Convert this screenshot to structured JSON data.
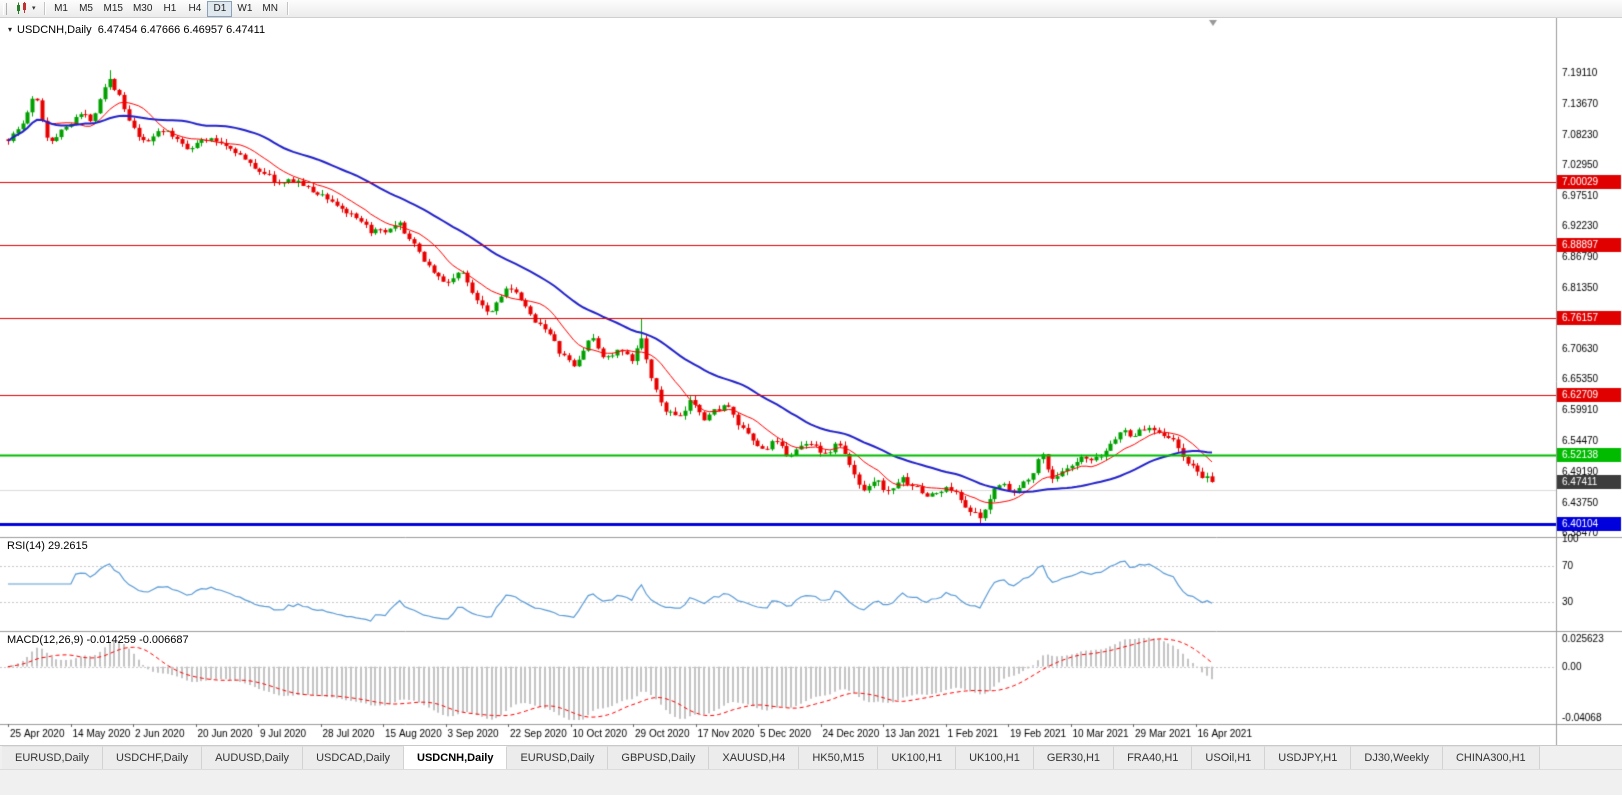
{
  "toolbar": {
    "timeframes": [
      "M1",
      "M5",
      "M15",
      "M30",
      "H1",
      "H4",
      "D1",
      "W1",
      "MN"
    ],
    "active_timeframe": "D1"
  },
  "chart": {
    "title": "USDCNH,Daily  6.47454 6.47666 6.46957 6.47411",
    "symbol": "USDCNH",
    "period": "Daily",
    "ohlc": {
      "open": "6.47454",
      "high": "6.47666",
      "low": "6.46957",
      "close": "6.47411"
    }
  },
  "indicators": {
    "rsi_label": "RSI(14) 29.2615",
    "macd_label": "MACD(12,26,9) -0.014259 -0.006687"
  },
  "price_axis": {
    "regular_labels": [
      "7.19110",
      "7.13670",
      "7.08230",
      "7.02950",
      "6.97510",
      "6.92230",
      "6.86790",
      "6.81350",
      "6.70630",
      "6.65350",
      "6.59910",
      "6.54470",
      "6.49190",
      "6.43750",
      "6.38470"
    ],
    "current_price_label": {
      "text": "6.47411",
      "bg": "#3c3c3c",
      "fg": "#ffffff"
    }
  },
  "colors": {
    "up": "#00a000",
    "down": "#e80000",
    "ma_fast": "#ff0000",
    "ma_slow": "#2121c8",
    "rsi_line": "#5b9bd5",
    "macd_hist": "#c4c4c4",
    "macd_signal": "#ff0000",
    "separator": "#9a9a9a",
    "minor_grid": "#dcdcdc",
    "guide_dotted": "#c8c8c8"
  },
  "chart_data": {
    "type": "candlestick",
    "title": "USDCNH,Daily",
    "num_candles": 250,
    "current_price": 6.47411,
    "minor_line_price": 6.46,
    "y_range": [
      6.365,
      7.215
    ],
    "price_waypoints": [
      [
        8,
        7.075
      ],
      [
        22,
        7.1
      ],
      [
        35,
        7.155
      ],
      [
        48,
        7.07
      ],
      [
        62,
        7.09
      ],
      [
        78,
        7.12
      ],
      [
        92,
        7.11
      ],
      [
        108,
        7.185
      ],
      [
        118,
        7.155
      ],
      [
        130,
        7.1
      ],
      [
        145,
        7.065
      ],
      [
        160,
        7.095
      ],
      [
        172,
        7.08
      ],
      [
        188,
        7.06
      ],
      [
        205,
        7.075
      ],
      [
        220,
        7.07
      ],
      [
        235,
        7.055
      ],
      [
        250,
        7.03
      ],
      [
        265,
        7.015
      ],
      [
        280,
        6.995
      ],
      [
        295,
        7.005
      ],
      [
        310,
        6.985
      ],
      [
        325,
        6.975
      ],
      [
        340,
        6.955
      ],
      [
        355,
        6.935
      ],
      [
        370,
        6.915
      ],
      [
        385,
        6.91
      ],
      [
        400,
        6.925
      ],
      [
        415,
        6.885
      ],
      [
        430,
        6.85
      ],
      [
        445,
        6.82
      ],
      [
        460,
        6.845
      ],
      [
        475,
        6.8
      ],
      [
        490,
        6.77
      ],
      [
        505,
        6.815
      ],
      [
        518,
        6.8
      ],
      [
        530,
        6.765
      ],
      [
        545,
        6.745
      ],
      [
        560,
        6.7
      ],
      [
        575,
        6.675
      ],
      [
        590,
        6.73
      ],
      [
        605,
        6.69
      ],
      [
        620,
        6.705
      ],
      [
        632,
        6.685
      ],
      [
        642,
        6.73
      ],
      [
        652,
        6.645
      ],
      [
        665,
        6.6
      ],
      [
        680,
        6.585
      ],
      [
        692,
        6.62
      ],
      [
        705,
        6.585
      ],
      [
        715,
        6.6
      ],
      [
        726,
        6.61
      ],
      [
        738,
        6.575
      ],
      [
        750,
        6.55
      ],
      [
        762,
        6.53
      ],
      [
        775,
        6.545
      ],
      [
        788,
        6.52
      ],
      [
        800,
        6.535
      ],
      [
        812,
        6.545
      ],
      [
        825,
        6.52
      ],
      [
        838,
        6.545
      ],
      [
        850,
        6.5
      ],
      [
        862,
        6.46
      ],
      [
        875,
        6.48
      ],
      [
        888,
        6.455
      ],
      [
        900,
        6.48
      ],
      [
        912,
        6.47
      ],
      [
        925,
        6.45
      ],
      [
        938,
        6.455
      ],
      [
        950,
        6.465
      ],
      [
        962,
        6.44
      ],
      [
        972,
        6.42
      ],
      [
        982,
        6.408
      ],
      [
        992,
        6.455
      ],
      [
        1002,
        6.48
      ],
      [
        1012,
        6.45
      ],
      [
        1022,
        6.47
      ],
      [
        1032,
        6.49
      ],
      [
        1042,
        6.525
      ],
      [
        1052,
        6.48
      ],
      [
        1062,
        6.49
      ],
      [
        1072,
        6.5
      ],
      [
        1082,
        6.515
      ],
      [
        1092,
        6.51
      ],
      [
        1102,
        6.52
      ],
      [
        1112,
        6.545
      ],
      [
        1122,
        6.565
      ],
      [
        1132,
        6.555
      ],
      [
        1142,
        6.565
      ],
      [
        1152,
        6.57
      ],
      [
        1162,
        6.56
      ],
      [
        1172,
        6.55
      ],
      [
        1182,
        6.52
      ],
      [
        1192,
        6.5
      ],
      [
        1202,
        6.485
      ],
      [
        1212,
        6.474
      ]
    ],
    "extremes": [
      {
        "x": 108,
        "high": 7.196
      },
      {
        "x": 642,
        "high": 6.7616
      },
      {
        "x": 982,
        "low": 6.402
      }
    ],
    "levels": [
      {
        "price": 7.00029,
        "label": "7.00029",
        "color": "#e00000",
        "width": 1
      },
      {
        "price": 6.88897,
        "label": "6.88897",
        "color": "#e00000",
        "width": 1
      },
      {
        "price": 6.76157,
        "label": "6.76157",
        "color": "#e00000",
        "width": 1
      },
      {
        "price": 6.62709,
        "label": "6.62709",
        "color": "#e00000",
        "width": 1
      },
      {
        "price": 6.52138,
        "label": "6.52138",
        "color": "#00bb00",
        "width": 2
      },
      {
        "price": 6.40104,
        "label": "6.40104",
        "color": "#0000dd",
        "width": 3
      }
    ],
    "moving_averages": [
      {
        "period": 10,
        "color": "#ff0000",
        "width": 1
      },
      {
        "period": 34,
        "color": "#2121c8",
        "width": 2
      }
    ],
    "rsi": {
      "period": 14,
      "value": 29.2615,
      "guide_levels": [
        70,
        30
      ],
      "axis_labels": [
        "100",
        "70",
        "30"
      ]
    },
    "macd": {
      "fast": 12,
      "slow": 26,
      "signal_period": 9,
      "value": -0.014259,
      "signal_value": -0.006687,
      "axis_labels": [
        "0.025623",
        "0.00",
        "-0.04068"
      ],
      "display_range": [
        -0.04068,
        0.025623
      ]
    },
    "x_axis_dates": [
      "25 Apr 2020",
      "14 May 2020",
      "2 Jun 2020",
      "20 Jun 2020",
      "9 Jul 2020",
      "28 Jul 2020",
      "15 Aug 2020",
      "3 Sep 2020",
      "22 Sep 2020",
      "10 Oct 2020",
      "29 Oct 2020",
      "17 Nov 2020",
      "5 Dec 2020",
      "24 Dec 2020",
      "13 Jan 2021",
      "1 Feb 2021",
      "19 Feb 2021",
      "10 Mar 2021",
      "29 Mar 2021",
      "16 Apr 2021"
    ]
  },
  "tabs": {
    "items": [
      {
        "label": "EURUSD,Daily",
        "active": false
      },
      {
        "label": "USDCHF,Daily",
        "active": false
      },
      {
        "label": "AUDUSD,Daily",
        "active": false
      },
      {
        "label": "USDCAD,Daily",
        "active": false
      },
      {
        "label": "USDCNH,Daily",
        "active": true
      },
      {
        "label": "EURUSD,Daily",
        "active": false
      },
      {
        "label": "GBPUSD,Daily",
        "active": false
      },
      {
        "label": "XAUUSD,H4",
        "active": false
      },
      {
        "label": "HK50,M15",
        "active": false
      },
      {
        "label": "UK100,H1",
        "active": false
      },
      {
        "label": "UK100,H1",
        "active": false
      },
      {
        "label": "GER30,H1",
        "active": false
      },
      {
        "label": "FRA40,H1",
        "active": false
      },
      {
        "label": "USOil,H1",
        "active": false
      },
      {
        "label": "USDJPY,H1",
        "active": false
      },
      {
        "label": "DJ30,Weekly",
        "active": false
      },
      {
        "label": "CHINA300,H1",
        "active": false
      }
    ]
  }
}
